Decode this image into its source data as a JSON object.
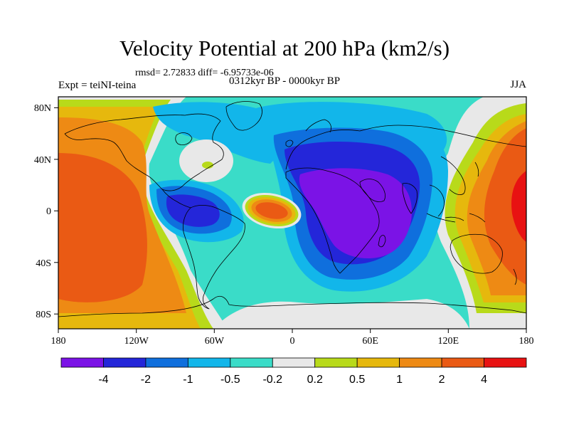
{
  "header": {
    "title": "Velocity Potential at 200 hPa (km2/s)",
    "stats": "rmsd= 2.72833 diff= -6.95733e-06",
    "experiment": "Expt = teiNI-teina",
    "period": "0312kyr BP - 0000kyr BP",
    "season": "JJA"
  },
  "map": {
    "projection": "cylindrical equidistant",
    "lon_range": [
      -180,
      180
    ],
    "lat_range": [
      -90,
      90
    ],
    "lon_ticks": [
      "180",
      "120W",
      "60W",
      "0",
      "60E",
      "120E",
      "180"
    ],
    "lat_ticks": [
      "80N",
      "40N",
      "0",
      "40S",
      "80S"
    ],
    "coastline_color": "#000000"
  },
  "colorbar": {
    "colors": [
      "#7b13e6",
      "#2426d9",
      "#0f6fdd",
      "#12b6ea",
      "#3adcc8",
      "#e8e8e8",
      "#b8da1a",
      "#e6b80d",
      "#ee8a14",
      "#ea5a14",
      "#e81212"
    ],
    "labels": [
      "-4",
      "-2",
      "-1",
      "-0.5",
      "-0.2",
      "0.2",
      "0.5",
      "1",
      "2",
      "4"
    ]
  }
}
